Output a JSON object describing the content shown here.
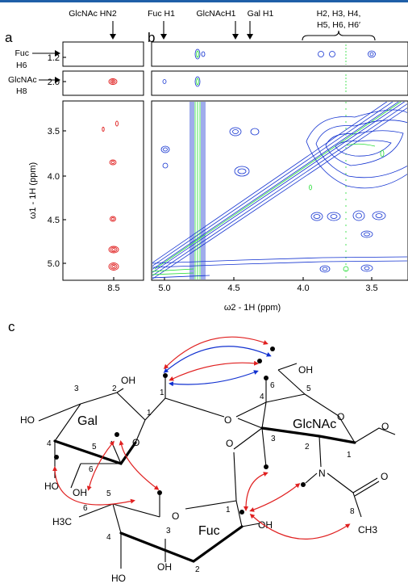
{
  "panels": {
    "a": "a",
    "b": "b",
    "c": "c"
  },
  "top_labels": {
    "glcnac_hn2": "GlcNAc HN2",
    "fuc_h1": "Fuc H1",
    "glcnac_h1": "GlcNAcH1",
    "gal_h1": "Gal H1",
    "group_line1": "H2, H3, H4,",
    "group_line2": "H5, H6, H6′"
  },
  "row_labels": {
    "fuc_line1": "Fuc",
    "fuc_line2": "H6",
    "glcnac_line1": "GlcNAc",
    "glcnac_line2": "H8"
  },
  "axes": {
    "y_label": "ω1 - 1H (ppm)",
    "x_label": "ω2 - 1H (ppm)",
    "strip_ticks": [
      "1.2",
      "2.0"
    ],
    "y_ticks": [
      "3.5",
      "4.0",
      "4.5",
      "5.0"
    ],
    "x_ticks_a": [
      "8.5"
    ],
    "x_ticks_b": [
      "5.0",
      "4.5",
      "4.0",
      "3.5"
    ],
    "y_range": [
      5.2,
      3.1
    ],
    "x_range_b": [
      5.2,
      3.3
    ]
  },
  "colors": {
    "positive": "#1030d0",
    "negative": "#22dd33",
    "panel_a": "#e02020",
    "arrow_blue": "#1030d0",
    "arrow_red": "#e02020"
  },
  "molecule": {
    "gal": "Gal",
    "glcnac": "GlcNAc",
    "fuc": "Fuc",
    "o": "O",
    "n": "N",
    "oh": "OH",
    "ho": "HO",
    "ch3": "CH3",
    "h3c": "H3C",
    "nums": {
      "n1": "1",
      "n2": "2",
      "n3": "3",
      "n4": "4",
      "n5": "5",
      "n6": "6",
      "n8": "8"
    }
  }
}
